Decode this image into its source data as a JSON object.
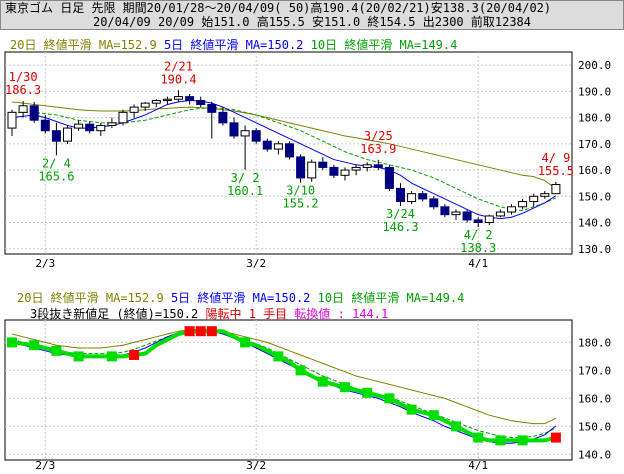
{
  "header": {
    "line1": "東京ゴム 日足 先限 期間20/01/28～20/04/09( 50)高190.4(20/02/21)安138.3(20/04/02)",
    "line2": "20/04/09 20/09 始151.0 高155.5 安151.0 終154.5 出2300 前取12384"
  },
  "legend": {
    "ma20": "20日 終値平滑 MA=152.9",
    "ma5": "5日 終値平滑 MA=150.2",
    "ma10": "10日 終値平滑 MA=149.4"
  },
  "kagi": {
    "title": "3段抜き新値足 (終値)=150.2",
    "state": "陽転中",
    "count": "1 手目",
    "reversal": "転換値 : 144.1"
  },
  "colors": {
    "up": "#ffffff",
    "down": "#000080",
    "ma20": "#808000",
    "ma5": "#0000ff",
    "ma10": "#00a000",
    "kagi_up": "#ff0000",
    "kagi_down": "#00dd00"
  },
  "chart_data": [
    {
      "type": "candlestick",
      "x_ticks": [
        "2/3",
        "3/2",
        "4/1"
      ],
      "y_ticks": [
        "200.0",
        "190.0",
        "180.0",
        "170.0",
        "160.0",
        "150.0",
        "140.0",
        "130.0"
      ],
      "ylim": [
        128,
        205
      ],
      "candles": [
        {
          "o": 176.0,
          "h": 183.0,
          "l": 173.0,
          "c": 182.0
        },
        {
          "o": 182.0,
          "h": 186.3,
          "l": 180.0,
          "c": 184.5
        },
        {
          "o": 184.5,
          "h": 186.0,
          "l": 178.0,
          "c": 179.0
        },
        {
          "o": 179.0,
          "h": 181.0,
          "l": 174.0,
          "c": 175.0
        },
        {
          "o": 175.0,
          "h": 178.0,
          "l": 165.6,
          "c": 171.0
        },
        {
          "o": 171.0,
          "h": 177.0,
          "l": 170.0,
          "c": 176.0
        },
        {
          "o": 176.0,
          "h": 179.0,
          "l": 175.0,
          "c": 177.5
        },
        {
          "o": 177.5,
          "h": 178.5,
          "l": 174.0,
          "c": 175.0
        },
        {
          "o": 175.0,
          "h": 178.0,
          "l": 173.0,
          "c": 177.0
        },
        {
          "o": 177.0,
          "h": 180.0,
          "l": 176.0,
          "c": 178.0
        },
        {
          "o": 178.0,
          "h": 183.0,
          "l": 177.0,
          "c": 182.0
        },
        {
          "o": 182.0,
          "h": 185.0,
          "l": 180.0,
          "c": 184.0
        },
        {
          "o": 184.0,
          "h": 186.0,
          "l": 182.5,
          "c": 185.5
        },
        {
          "o": 185.5,
          "h": 187.0,
          "l": 184.0,
          "c": 186.5
        },
        {
          "o": 186.5,
          "h": 188.0,
          "l": 185.0,
          "c": 187.0
        },
        {
          "o": 187.0,
          "h": 190.4,
          "l": 186.0,
          "c": 188.0
        },
        {
          "o": 188.0,
          "h": 189.0,
          "l": 185.0,
          "c": 186.5
        },
        {
          "o": 186.5,
          "h": 188.0,
          "l": 184.0,
          "c": 185.0
        },
        {
          "o": 185.0,
          "h": 186.0,
          "l": 172.0,
          "c": 182.0
        },
        {
          "o": 182.0,
          "h": 184.0,
          "l": 177.0,
          "c": 178.0
        },
        {
          "o": 178.0,
          "h": 180.0,
          "l": 172.0,
          "c": 173.0
        },
        {
          "o": 173.0,
          "h": 177.0,
          "l": 160.1,
          "c": 175.0
        },
        {
          "o": 175.0,
          "h": 176.0,
          "l": 170.0,
          "c": 171.0
        },
        {
          "o": 171.0,
          "h": 172.0,
          "l": 167.0,
          "c": 168.0
        },
        {
          "o": 168.0,
          "h": 171.0,
          "l": 166.0,
          "c": 170.0
        },
        {
          "o": 170.0,
          "h": 171.0,
          "l": 164.0,
          "c": 165.0
        },
        {
          "o": 165.0,
          "h": 166.0,
          "l": 155.2,
          "c": 157.0
        },
        {
          "o": 157.0,
          "h": 164.0,
          "l": 155.5,
          "c": 163.0
        },
        {
          "o": 163.0,
          "h": 165.0,
          "l": 160.0,
          "c": 161.0
        },
        {
          "o": 161.0,
          "h": 162.0,
          "l": 157.0,
          "c": 158.0
        },
        {
          "o": 158.0,
          "h": 161.0,
          "l": 156.0,
          "c": 160.0
        },
        {
          "o": 160.0,
          "h": 162.0,
          "l": 158.0,
          "c": 161.0
        },
        {
          "o": 161.0,
          "h": 163.0,
          "l": 159.5,
          "c": 162.0
        },
        {
          "o": 162.0,
          "h": 163.9,
          "l": 160.0,
          "c": 161.0
        },
        {
          "o": 161.0,
          "h": 162.0,
          "l": 152.0,
          "c": 153.0
        },
        {
          "o": 153.0,
          "h": 155.0,
          "l": 146.3,
          "c": 148.0
        },
        {
          "o": 148.0,
          "h": 152.0,
          "l": 147.0,
          "c": 151.0
        },
        {
          "o": 151.0,
          "h": 152.0,
          "l": 148.0,
          "c": 149.0
        },
        {
          "o": 149.0,
          "h": 150.0,
          "l": 145.0,
          "c": 146.0
        },
        {
          "o": 146.0,
          "h": 147.0,
          "l": 142.0,
          "c": 143.0
        },
        {
          "o": 143.0,
          "h": 145.0,
          "l": 141.0,
          "c": 144.0
        },
        {
          "o": 144.0,
          "h": 145.0,
          "l": 140.0,
          "c": 141.0
        },
        {
          "o": 141.0,
          "h": 142.0,
          "l": 138.3,
          "c": 140.0
        },
        {
          "o": 140.0,
          "h": 143.0,
          "l": 139.0,
          "c": 142.5
        },
        {
          "o": 142.5,
          "h": 145.0,
          "l": 142.0,
          "c": 144.0
        },
        {
          "o": 144.0,
          "h": 147.0,
          "l": 143.0,
          "c": 146.0
        },
        {
          "o": 146.0,
          "h": 149.0,
          "l": 145.0,
          "c": 148.0
        },
        {
          "o": 148.0,
          "h": 151.0,
          "l": 146.0,
          "c": 150.0
        },
        {
          "o": 150.0,
          "h": 152.0,
          "l": 149.0,
          "c": 151.0
        },
        {
          "o": 151.0,
          "h": 155.5,
          "l": 151.0,
          "c": 154.5
        }
      ],
      "ma20": [
        186,
        185.5,
        185,
        184.5,
        184,
        183.5,
        183,
        182.7,
        182.5,
        182.5,
        182.5,
        182.7,
        183,
        183.3,
        183.5,
        183.8,
        184,
        183.8,
        183.5,
        183,
        182.5,
        181.8,
        181,
        180,
        179,
        178,
        177,
        176,
        175,
        174,
        173,
        172.3,
        171.5,
        170.8,
        170,
        169,
        168,
        167,
        166,
        165,
        164,
        163,
        162,
        161,
        160,
        159,
        158,
        157.5,
        156,
        152.9
      ],
      "ma5": [
        180,
        180.5,
        181,
        180,
        178.5,
        177,
        176,
        176,
        176.5,
        177,
        178,
        179.5,
        181,
        183,
        185,
        186,
        186.5,
        186.3,
        185.5,
        184,
        182,
        180,
        178,
        176,
        174,
        172,
        170,
        168,
        166,
        164,
        163,
        162,
        161.5,
        161,
        160,
        158,
        155,
        153,
        151,
        149,
        147,
        145,
        143,
        142,
        141.5,
        142,
        143.5,
        145.5,
        147.5,
        150.2
      ],
      "ma10": [
        182,
        182,
        182,
        181.5,
        181,
        180,
        179,
        178.5,
        178,
        178,
        178,
        178.5,
        179,
        180,
        181,
        182,
        183,
        183.5,
        183.8,
        183.5,
        183,
        182,
        181,
        179.5,
        178,
        176.5,
        175,
        173,
        171,
        169,
        167,
        165.5,
        164,
        163,
        162,
        161,
        160,
        158.5,
        157,
        155,
        153,
        151,
        149,
        147.5,
        146,
        145,
        144.5,
        146,
        147.5,
        149.4
      ],
      "labels": [
        {
          "text": "1/30",
          "val": "186.3",
          "i": 1,
          "pos": "above",
          "color": "red"
        },
        {
          "text": "2/21",
          "val": "190.4",
          "i": 15,
          "pos": "above",
          "color": "red"
        },
        {
          "text": "3/25",
          "val": "163.9",
          "i": 33,
          "pos": "above",
          "color": "red"
        },
        {
          "text": "4/ 9",
          "val": "155.5",
          "i": 49,
          "pos": "above",
          "color": "red"
        },
        {
          "text": "2/ 4",
          "val": "165.6",
          "i": 4,
          "pos": "below",
          "color": "green"
        },
        {
          "text": "3/ 2",
          "val": "160.1",
          "i": 21,
          "pos": "below",
          "color": "green"
        },
        {
          "text": "3/10",
          "val": "155.2",
          "i": 26,
          "pos": "below",
          "color": "green"
        },
        {
          "text": "3/24",
          "val": "146.3",
          "i": 35,
          "pos": "below",
          "color": "green"
        },
        {
          "text": "4/ 2",
          "val": "138.3",
          "i": 42,
          "pos": "below",
          "color": "green"
        }
      ]
    },
    {
      "type": "line",
      "x_ticks": [
        "2/3",
        "3/2",
        "4/1"
      ],
      "y_ticks": [
        "180.0",
        "170.0",
        "160.0",
        "150.0",
        "140.0"
      ],
      "ylim": [
        138,
        188
      ],
      "kagi_values": [
        180,
        179.5,
        179,
        178,
        177,
        176,
        175,
        175,
        175,
        175,
        175,
        175.5,
        176,
        179,
        181,
        183,
        184,
        184,
        184,
        184,
        182,
        180,
        179,
        177,
        175,
        173,
        170,
        168,
        166,
        165,
        164,
        163,
        162,
        161,
        160,
        158,
        156,
        155,
        154,
        152,
        150,
        148,
        146,
        145,
        145,
        145,
        145,
        145,
        145,
        146
      ],
      "kagi_marks": [
        {
          "i": 11,
          "dir": "up"
        },
        {
          "i": 16,
          "dir": "up"
        },
        {
          "i": 17,
          "dir": "up"
        },
        {
          "i": 18,
          "dir": "up"
        },
        {
          "i": 0,
          "dir": "down"
        },
        {
          "i": 2,
          "dir": "down"
        },
        {
          "i": 4,
          "dir": "down"
        },
        {
          "i": 6,
          "dir": "down"
        },
        {
          "i": 9,
          "dir": "down"
        },
        {
          "i": 21,
          "dir": "down"
        },
        {
          "i": 24,
          "dir": "down"
        },
        {
          "i": 26,
          "dir": "down"
        },
        {
          "i": 28,
          "dir": "down"
        },
        {
          "i": 30,
          "dir": "down"
        },
        {
          "i": 32,
          "dir": "down"
        },
        {
          "i": 34,
          "dir": "down"
        },
        {
          "i": 36,
          "dir": "down"
        },
        {
          "i": 38,
          "dir": "down"
        },
        {
          "i": 40,
          "dir": "down"
        },
        {
          "i": 42,
          "dir": "down"
        },
        {
          "i": 44,
          "dir": "down"
        },
        {
          "i": 46,
          "dir": "down"
        },
        {
          "i": 49,
          "dir": "up"
        }
      ],
      "ma20": [
        183,
        182,
        181,
        180,
        179,
        178.5,
        178,
        178,
        178,
        178.5,
        179,
        180,
        181,
        182,
        183,
        184,
        184.5,
        184.5,
        184.5,
        184,
        183,
        182,
        181,
        180,
        178.5,
        177,
        175.5,
        174,
        172.5,
        171,
        169.5,
        168,
        167,
        166,
        165,
        164,
        163,
        162,
        161,
        160,
        158.5,
        157,
        155.5,
        154,
        153,
        152,
        151.5,
        151,
        151,
        152.9
      ],
      "ma5": [
        180,
        179,
        178,
        177,
        176,
        175.5,
        175,
        175,
        175,
        175,
        175.5,
        176.5,
        178,
        180,
        182,
        183.5,
        184.5,
        184.5,
        184,
        183,
        181.5,
        180,
        178,
        176,
        174,
        172,
        170,
        168,
        166,
        164.5,
        163,
        162,
        161,
        160,
        158.5,
        157,
        155,
        153.5,
        152,
        150,
        148.5,
        147,
        145.5,
        144.5,
        144,
        144,
        144.5,
        145.5,
        147,
        150.2
      ],
      "ma10": [
        181,
        180,
        179,
        178,
        177,
        176.5,
        176,
        176,
        176,
        176,
        176.5,
        177.5,
        179,
        180.5,
        182,
        183,
        184,
        184,
        184,
        183.5,
        182.5,
        181,
        179.5,
        178,
        176,
        174,
        172,
        170,
        168,
        166.5,
        165,
        163.5,
        162.5,
        161.5,
        160.5,
        159,
        157.5,
        156,
        154.5,
        153,
        151.5,
        150,
        148.5,
        147.5,
        146.5,
        146,
        146,
        146.5,
        147.5,
        149.4
      ]
    }
  ]
}
